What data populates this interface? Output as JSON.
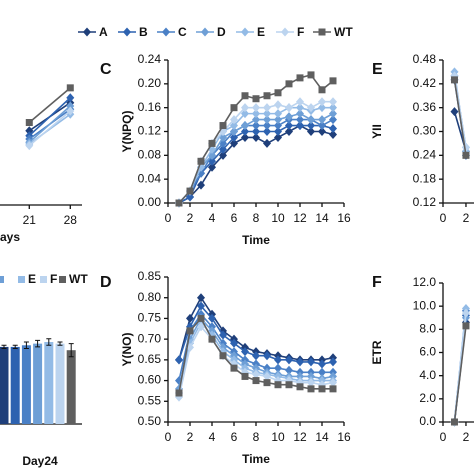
{
  "chart_data": [
    {
      "type": "line",
      "xlabel": "ays",
      "x": [
        21,
        28
      ],
      "xlim": [
        16,
        30
      ],
      "xticks": [
        21,
        28
      ],
      "ylim": [
        0,
        1
      ],
      "series": [
        {
          "color": "#1f3f7a",
          "marker": "diamond",
          "values": [
            0.45,
            0.62
          ]
        },
        {
          "color": "#2d62b0",
          "marker": "diamond",
          "values": [
            0.42,
            0.65
          ]
        },
        {
          "color": "#4a80c6",
          "marker": "diamond",
          "values": [
            0.4,
            0.58
          ]
        },
        {
          "color": "#6e9fd6",
          "marker": "diamond",
          "values": [
            0.38,
            0.6
          ]
        },
        {
          "color": "#93bbe6",
          "marker": "diamond",
          "values": [
            0.37,
            0.55
          ]
        },
        {
          "color": "#bcd4ef",
          "marker": "diamond",
          "values": [
            0.36,
            0.57
          ]
        },
        {
          "color": "#5f5f5f",
          "marker": "square",
          "values": [
            0.5,
            0.71
          ]
        }
      ]
    },
    {
      "type": "line",
      "label": "C",
      "xlabel": "Time",
      "ylabel": "Y(NPQ)",
      "x": [
        1,
        2,
        3,
        4,
        5,
        6,
        7,
        8,
        9,
        10,
        11,
        12,
        13,
        14,
        15
      ],
      "xlim": [
        0,
        16
      ],
      "xticks": [
        0,
        2,
        4,
        6,
        8,
        10,
        12,
        14,
        16
      ],
      "ylim": [
        0,
        0.24
      ],
      "yticks": [
        {
          "value": 0,
          "label": "0.00"
        },
        0.04,
        0.08,
        0.12,
        0.16,
        {
          "value": 0.2,
          "label": "0.20"
        },
        0.24
      ],
      "series": [
        {
          "name": "A",
          "color": "#1f3f7a",
          "marker": "diamond",
          "values": [
            0,
            0.01,
            0.03,
            0.06,
            0.08,
            0.1,
            0.11,
            0.11,
            0.1,
            0.11,
            0.12,
            0.13,
            0.12,
            0.12,
            0.115
          ]
        },
        {
          "name": "B",
          "color": "#2d62b0",
          "marker": "diamond",
          "values": [
            0,
            0.01,
            0.05,
            0.07,
            0.09,
            0.11,
            0.12,
            0.12,
            0.12,
            0.12,
            0.13,
            0.13,
            0.13,
            0.13,
            0.125
          ]
        },
        {
          "name": "C",
          "color": "#4a80c6",
          "marker": "diamond",
          "values": [
            0,
            0.02,
            0.05,
            0.08,
            0.1,
            0.12,
            0.13,
            0.13,
            0.13,
            0.13,
            0.14,
            0.14,
            0.14,
            0.13,
            0.14
          ]
        },
        {
          "name": "D",
          "color": "#6e9fd6",
          "marker": "diamond",
          "values": [
            0,
            0.02,
            0.06,
            0.08,
            0.11,
            0.12,
            0.13,
            0.14,
            0.14,
            0.14,
            0.145,
            0.15,
            0.14,
            0.14,
            0.15
          ]
        },
        {
          "name": "E",
          "color": "#93bbe6",
          "marker": "diamond",
          "values": [
            0,
            0.02,
            0.06,
            0.09,
            0.12,
            0.13,
            0.15,
            0.15,
            0.15,
            0.15,
            0.16,
            0.16,
            0.155,
            0.16,
            0.16
          ]
        },
        {
          "name": "F",
          "color": "#bcd4ef",
          "marker": "diamond",
          "values": [
            0,
            0.02,
            0.07,
            0.1,
            0.12,
            0.14,
            0.16,
            0.16,
            0.16,
            0.165,
            0.16,
            0.17,
            0.16,
            0.17,
            0.17
          ]
        },
        {
          "name": "WT",
          "color": "#5f5f5f",
          "marker": "square",
          "values": [
            0,
            0.02,
            0.07,
            0.1,
            0.13,
            0.16,
            0.18,
            0.175,
            0.18,
            0.185,
            0.2,
            0.21,
            0.215,
            0.19,
            0.205
          ]
        }
      ]
    },
    {
      "type": "line",
      "label": "E",
      "ylabel": "YII",
      "x": [
        1,
        2
      ],
      "xlim": [
        0,
        2.7
      ],
      "xticks": [
        0,
        2
      ],
      "ylim": [
        0.12,
        0.48
      ],
      "yticks": [
        0.12,
        0.18,
        0.24,
        {
          "value": 0.3,
          "label": "0.30"
        },
        0.36,
        0.42,
        0.48
      ],
      "series": [
        {
          "color": "#1f3f7a",
          "marker": "diamond",
          "values": [
            0.35,
            0.25
          ]
        },
        {
          "color": "#2d62b0",
          "marker": "diamond",
          "values": [
            0.43,
            0.24
          ]
        },
        {
          "color": "#4a80c6",
          "marker": "diamond",
          "values": [
            0.44,
            0.25
          ]
        },
        {
          "color": "#6e9fd6",
          "marker": "diamond",
          "values": [
            0.44,
            0.26
          ]
        },
        {
          "color": "#93bbe6",
          "marker": "diamond",
          "values": [
            0.45,
            0.25
          ]
        },
        {
          "color": "#bcd4ef",
          "marker": "diamond",
          "values": [
            0.44,
            0.26
          ]
        },
        {
          "color": "#5f5f5f",
          "marker": "square",
          "values": [
            0.43,
            0.24
          ]
        }
      ]
    },
    {
      "type": "bar",
      "categories": [
        "Day24"
      ],
      "ylim": [
        0,
        1
      ],
      "series": [
        {
          "color": "#1f3f7a",
          "values": [
            0.47
          ],
          "errors": [
            0.01
          ]
        },
        {
          "color": "#2d62b0",
          "values": [
            0.47
          ],
          "errors": [
            0.01
          ]
        },
        {
          "color": "#4a80c6",
          "values": [
            0.48
          ],
          "errors": [
            0.02
          ]
        },
        {
          "color": "#6e9fd6",
          "values": [
            0.49
          ],
          "errors": [
            0.02
          ]
        },
        {
          "name": "E",
          "color": "#93bbe6",
          "values": [
            0.5
          ],
          "errors": [
            0.02
          ]
        },
        {
          "name": "F",
          "color": "#bcd4ef",
          "values": [
            0.49
          ],
          "errors": [
            0.01
          ]
        },
        {
          "name": "WT",
          "color": "#5f5f5f",
          "values": [
            0.45
          ],
          "errors": [
            0.04
          ]
        }
      ]
    },
    {
      "type": "line",
      "label": "D",
      "xlabel": "Time",
      "ylabel": "Y(NO)",
      "x": [
        1,
        2,
        3,
        4,
        5,
        6,
        7,
        8,
        9,
        10,
        11,
        12,
        13,
        14,
        15
      ],
      "xlim": [
        0,
        16
      ],
      "xticks": [
        0,
        2,
        4,
        6,
        8,
        10,
        12,
        14,
        16
      ],
      "ylim": [
        0.5,
        0.85
      ],
      "yticks": [
        {
          "value": 0.5,
          "label": "0.50"
        },
        0.55,
        {
          "value": 0.6,
          "label": "0.60"
        },
        0.65,
        {
          "value": 0.7,
          "label": "0.70"
        },
        0.75,
        {
          "value": 0.8,
          "label": "0.80"
        },
        0.85
      ],
      "series": [
        {
          "color": "#1f3f7a",
          "marker": "diamond",
          "values": [
            0.65,
            0.75,
            0.8,
            0.76,
            0.72,
            0.7,
            0.68,
            0.67,
            0.665,
            0.66,
            0.655,
            0.65,
            0.65,
            0.65,
            0.655
          ]
        },
        {
          "color": "#2d62b0",
          "marker": "diamond",
          "values": [
            0.65,
            0.73,
            0.78,
            0.75,
            0.71,
            0.69,
            0.67,
            0.66,
            0.66,
            0.65,
            0.65,
            0.645,
            0.645,
            0.64,
            0.645
          ]
        },
        {
          "color": "#4a80c6",
          "marker": "diamond",
          "values": [
            0.6,
            0.72,
            0.76,
            0.73,
            0.69,
            0.67,
            0.65,
            0.64,
            0.63,
            0.63,
            0.625,
            0.62,
            0.62,
            0.62,
            0.62
          ]
        },
        {
          "color": "#6e9fd6",
          "marker": "diamond",
          "values": [
            0.58,
            0.7,
            0.75,
            0.72,
            0.68,
            0.66,
            0.64,
            0.63,
            0.62,
            0.615,
            0.61,
            0.61,
            0.61,
            0.605,
            0.61
          ]
        },
        {
          "color": "#93bbe6",
          "marker": "diamond",
          "values": [
            0.57,
            0.69,
            0.74,
            0.71,
            0.67,
            0.65,
            0.63,
            0.62,
            0.615,
            0.61,
            0.605,
            0.6,
            0.6,
            0.6,
            0.6
          ]
        },
        {
          "color": "#bcd4ef",
          "marker": "diamond",
          "values": [
            0.56,
            0.68,
            0.73,
            0.7,
            0.66,
            0.64,
            0.62,
            0.615,
            0.61,
            0.6,
            0.6,
            0.595,
            0.595,
            0.59,
            0.595
          ]
        },
        {
          "color": "#5f5f5f",
          "marker": "square",
          "values": [
            0.57,
            0.72,
            0.75,
            0.7,
            0.66,
            0.63,
            0.61,
            0.6,
            0.595,
            0.59,
            0.59,
            0.585,
            0.58,
            0.58,
            0.58
          ]
        }
      ]
    },
    {
      "type": "line",
      "label": "F",
      "ylabel": "ETR",
      "x": [
        1,
        2
      ],
      "xlim": [
        0,
        2.7
      ],
      "xticks": [
        0,
        2
      ],
      "ylim": [
        0,
        12
      ],
      "yticks": [
        {
          "value": 0,
          "label": "0.0"
        },
        {
          "value": 2,
          "label": "2.0"
        },
        {
          "value": 4,
          "label": "4.0"
        },
        {
          "value": 6,
          "label": "6.0"
        },
        {
          "value": 8,
          "label": "8.0"
        },
        {
          "value": 10,
          "label": "10.0"
        },
        {
          "value": 12,
          "label": "12.0"
        }
      ],
      "series": [
        {
          "color": "#1f3f7a",
          "marker": "diamond",
          "values": [
            0,
            8.6
          ]
        },
        {
          "color": "#2d62b0",
          "marker": "diamond",
          "values": [
            0,
            9.2
          ]
        },
        {
          "color": "#4a80c6",
          "marker": "diamond",
          "values": [
            0,
            9.6
          ]
        },
        {
          "color": "#6e9fd6",
          "marker": "diamond",
          "values": [
            0,
            9.0
          ]
        },
        {
          "color": "#93bbe6",
          "marker": "diamond",
          "values": [
            0,
            9.8
          ]
        },
        {
          "color": "#bcd4ef",
          "marker": "diamond",
          "values": [
            0,
            9.4
          ]
        },
        {
          "color": "#5f5f5f",
          "marker": "square",
          "values": [
            0,
            8.3
          ]
        }
      ]
    }
  ]
}
